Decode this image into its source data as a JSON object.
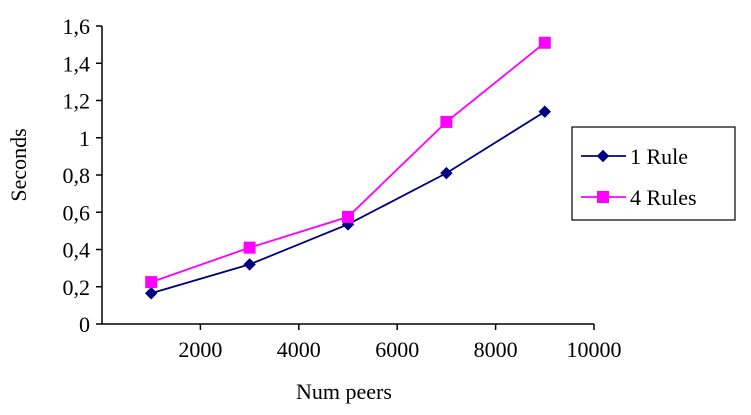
{
  "chart_data": {
    "type": "line",
    "xlabel": "Num  peers",
    "ylabel": "Seconds",
    "xlim": [
      0,
      10000
    ],
    "ylim": [
      0,
      1.6
    ],
    "x_ticks": [
      2000,
      4000,
      6000,
      8000,
      10000
    ],
    "x_tick_labels": [
      "2000",
      "4000",
      "6000",
      "8000",
      "10000"
    ],
    "y_ticks": [
      0,
      0.2,
      0.4,
      0.6,
      0.8,
      1.0,
      1.2,
      1.4,
      1.6
    ],
    "y_tick_labels": [
      "0",
      "0,2",
      "0,4",
      "0,6",
      "0,8",
      "1",
      "1,2",
      "1,4",
      "1,6"
    ],
    "grid": false,
    "legend_position": "right",
    "series": [
      {
        "name": "1 Rule",
        "color": "#000080",
        "marker": "diamond",
        "x": [
          1000,
          3000,
          5000,
          7000,
          9000
        ],
        "y": [
          0.165,
          0.32,
          0.535,
          0.81,
          1.14
        ]
      },
      {
        "name": "4 Rules",
        "color": "#ff00ff",
        "marker": "square",
        "x": [
          1000,
          3000,
          5000,
          7000,
          9000
        ],
        "y": [
          0.225,
          0.41,
          0.575,
          1.085,
          1.51
        ]
      }
    ]
  }
}
